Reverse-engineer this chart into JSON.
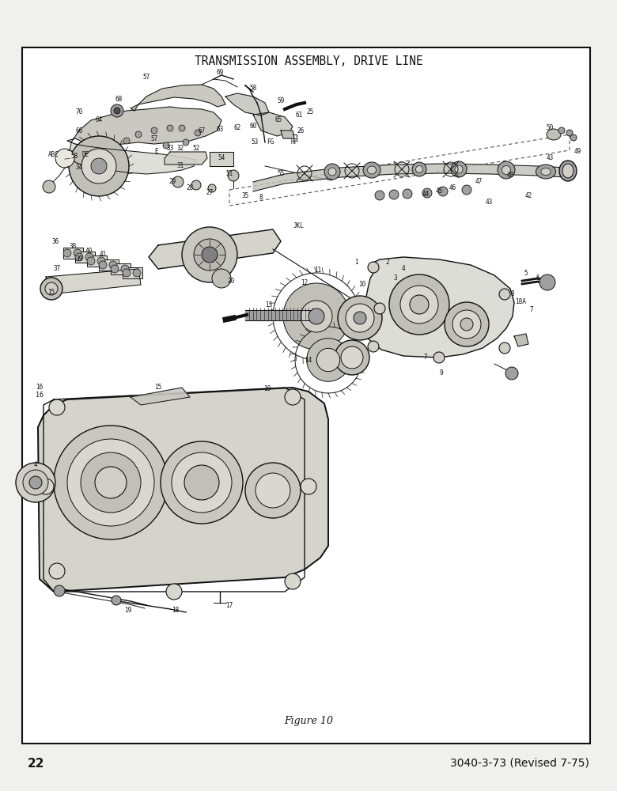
{
  "title": "TRANSMISSION ASSEMBLY, DRIVE LINE",
  "figure_label": "Figure 10",
  "page_number": "22",
  "doc_ref": "3040-3-73 (Revised 7-75)",
  "bg_color": "#ffffff",
  "border_color": "#111111",
  "inner_bg": "#ffffff",
  "title_fontsize": 10.5,
  "figure_label_fontsize": 9,
  "page_number_fontsize": 11,
  "doc_ref_fontsize": 10,
  "label_fontsize": 5.5
}
